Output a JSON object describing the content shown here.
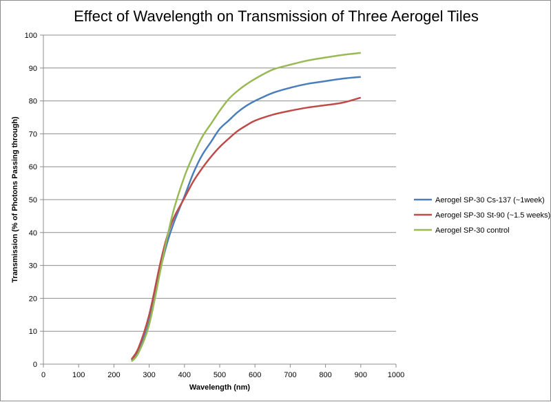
{
  "chart_data": {
    "type": "line",
    "title": "Effect of Wavelength on Transmission of Three Aerogel Tiles",
    "xlabel": "Wavelength (nm)",
    "ylabel": "Transmission (% of Photons Passing through)",
    "xlim": [
      0,
      1000
    ],
    "ylim": [
      0,
      100
    ],
    "xticks": [
      0,
      100,
      200,
      300,
      400,
      500,
      600,
      700,
      800,
      900,
      1000
    ],
    "yticks": [
      0,
      10,
      20,
      30,
      40,
      50,
      60,
      70,
      80,
      90,
      100
    ],
    "grid": "horizontal",
    "legend_position": "right",
    "x": [
      250,
      270,
      300,
      330,
      350,
      370,
      400,
      425,
      450,
      475,
      500,
      525,
      550,
      575,
      600,
      650,
      700,
      750,
      800,
      850,
      900
    ],
    "series": [
      {
        "name": "Aerogel SP-30 Cs-137 (~1week)",
        "color": "#4a7ebb",
        "values": [
          1.2,
          4.0,
          13.0,
          28.0,
          36.5,
          43.0,
          51.0,
          58.0,
          63.5,
          67.5,
          71.5,
          74.0,
          76.5,
          78.5,
          80.0,
          82.4,
          84.0,
          85.2,
          86.0,
          86.8,
          87.3
        ]
      },
      {
        "name": "Aerogel SP-30 St-90 (~1.5 weeks)",
        "color": "#be4b48",
        "values": [
          1.5,
          5.0,
          15.0,
          30.0,
          38.5,
          44.5,
          50.5,
          55.5,
          59.5,
          63.0,
          66.0,
          68.5,
          70.8,
          72.5,
          74.0,
          75.8,
          77.0,
          78.0,
          78.7,
          79.5,
          81.0
        ]
      },
      {
        "name": "Aerogel SP-30 control",
        "color": "#98b954",
        "values": [
          0.8,
          3.5,
          12.0,
          27.5,
          38.0,
          47.0,
          57.0,
          63.5,
          69.0,
          73.0,
          77.0,
          80.5,
          83.0,
          85.0,
          86.7,
          89.5,
          91.0,
          92.3,
          93.2,
          94.0,
          94.6
        ]
      }
    ]
  }
}
